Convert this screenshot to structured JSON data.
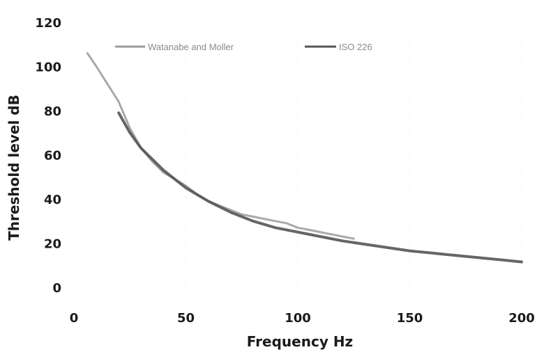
{
  "chart_data": {
    "type": "line",
    "title": "",
    "xlabel": "Frequency Hz",
    "ylabel": "Threshold level dB",
    "xlim": [
      0,
      200
    ],
    "ylim": [
      0,
      120
    ],
    "xticks": [
      0,
      50,
      100,
      150,
      200
    ],
    "yticks": [
      0,
      20,
      40,
      60,
      80,
      100,
      120
    ],
    "grid": false,
    "legend_position": "top",
    "series": [
      {
        "name": "Watanabe and Moller",
        "color": "#9a9a9a",
        "x": [
          6,
          10,
          15,
          20,
          25,
          30,
          35,
          40,
          45,
          50,
          55,
          60,
          65,
          70,
          75,
          80,
          85,
          90,
          95,
          100,
          105,
          110,
          115,
          120,
          125
        ],
        "y": [
          106,
          100,
          92,
          84,
          72,
          63,
          57,
          52,
          49,
          46,
          42,
          39,
          37,
          35,
          33,
          32,
          31,
          30,
          29,
          27,
          26,
          25,
          24,
          23,
          22
        ]
      },
      {
        "name": "ISO 226",
        "color": "#555555",
        "x": [
          20,
          25,
          30,
          40,
          50,
          60,
          70,
          80,
          90,
          100,
          110,
          120,
          130,
          140,
          150,
          160,
          170,
          180,
          190,
          200
        ],
        "y": [
          79,
          70,
          63,
          53,
          45,
          39,
          34,
          30,
          27,
          25,
          23,
          21,
          19.5,
          18,
          16.5,
          15.5,
          14.5,
          13.5,
          12.5,
          11.5
        ]
      }
    ]
  }
}
